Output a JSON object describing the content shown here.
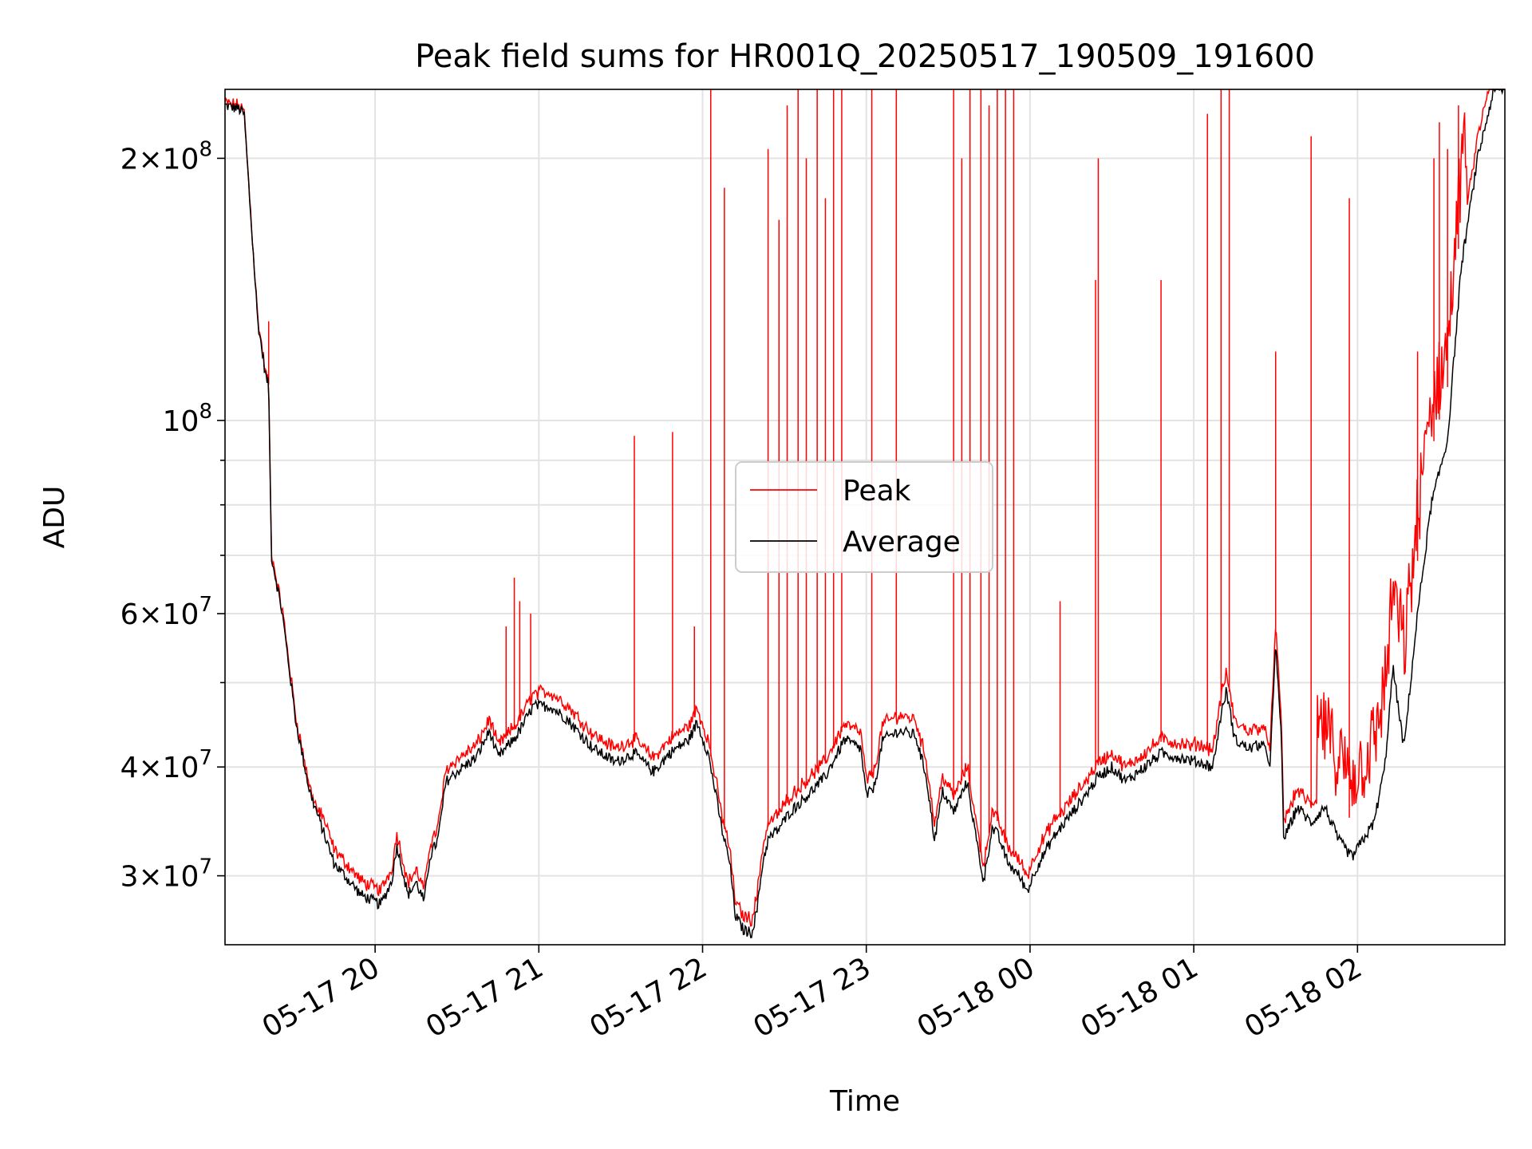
{
  "chart_data": {
    "type": "line",
    "title": "Peak field sums for HR001Q_20250517_190509_191600",
    "xlabel": "Time",
    "ylabel": "ADU",
    "x_axis_type": "time",
    "x_range": [
      "2025-05-17 19:05",
      "2025-05-18 02:54"
    ],
    "ylim": [
      25000000,
      240000000
    ],
    "yscale": "log",
    "grid": true,
    "legend_position": "center",
    "x_ticks": [
      {
        "value": "2025-05-17 20:00",
        "label": "05-17 20"
      },
      {
        "value": "2025-05-17 21:00",
        "label": "05-17 21"
      },
      {
        "value": "2025-05-17 22:00",
        "label": "05-17 22"
      },
      {
        "value": "2025-05-17 23:00",
        "label": "05-17 23"
      },
      {
        "value": "2025-05-18 00:00",
        "label": "05-18 00"
      },
      {
        "value": "2025-05-18 01:00",
        "label": "05-18 01"
      },
      {
        "value": "2025-05-18 02:00",
        "label": "05-18 02"
      }
    ],
    "y_ticks_major": [
      {
        "value": 30000000,
        "mantissa": "3",
        "exp": "7"
      },
      {
        "value": 40000000,
        "mantissa": "4",
        "exp": "7"
      },
      {
        "value": 60000000,
        "mantissa": "6",
        "exp": "7"
      },
      {
        "value": 100000000,
        "mantissa": "",
        "exp": "8"
      },
      {
        "value": 200000000,
        "mantissa": "2",
        "exp": "8"
      }
    ],
    "y_ticks_minor": [
      50000000,
      70000000,
      80000000,
      90000000
    ],
    "series": [
      {
        "name": "Peak",
        "color": "#ff0000"
      },
      {
        "name": "Average",
        "color": "#000000"
      }
    ],
    "average_profile": [
      [
        "2025-05-17 19:05",
        230000000
      ],
      [
        "2025-05-17 19:10",
        228000000
      ],
      [
        "2025-05-17 19:12",
        225000000
      ],
      [
        "2025-05-17 19:14",
        180000000
      ],
      [
        "2025-05-17 19:17",
        130000000
      ],
      [
        "2025-05-17 19:20",
        112000000
      ],
      [
        "2025-05-17 19:21",
        110000000
      ],
      [
        "2025-05-17 19:22",
        70000000
      ],
      [
        "2025-05-17 19:26",
        60000000
      ],
      [
        "2025-05-17 19:31",
        45000000
      ],
      [
        "2025-05-17 19:36",
        37500000
      ],
      [
        "2025-05-17 19:45",
        31000000
      ],
      [
        "2025-05-17 19:55",
        28500000
      ],
      [
        "2025-05-17 20:02",
        27800000
      ],
      [
        "2025-05-17 20:06",
        29500000
      ],
      [
        "2025-05-17 20:08",
        32500000
      ],
      [
        "2025-05-17 20:10",
        30500000
      ],
      [
        "2025-05-17 20:12",
        28500000
      ],
      [
        "2025-05-17 20:15",
        29500000
      ],
      [
        "2025-05-17 20:18",
        28000000
      ],
      [
        "2025-05-17 20:20",
        31500000
      ],
      [
        "2025-05-17 20:23",
        33000000
      ],
      [
        "2025-05-17 20:26",
        38500000
      ],
      [
        "2025-05-17 20:30",
        39500000
      ],
      [
        "2025-05-17 20:37",
        41000000
      ],
      [
        "2025-05-17 20:42",
        44000000
      ],
      [
        "2025-05-17 20:45",
        41000000
      ],
      [
        "2025-05-17 20:52",
        43500000
      ],
      [
        "2025-05-17 20:58",
        47000000
      ],
      [
        "2025-05-17 21:04",
        47000000
      ],
      [
        "2025-05-17 21:10",
        45500000
      ],
      [
        "2025-05-17 21:20",
        42000000
      ],
      [
        "2025-05-17 21:28",
        40500000
      ],
      [
        "2025-05-17 21:35",
        41500000
      ],
      [
        "2025-05-17 21:42",
        39500000
      ],
      [
        "2025-05-17 21:48",
        41500000
      ],
      [
        "2025-05-17 21:55",
        43000000
      ],
      [
        "2025-05-17 21:58",
        45000000
      ],
      [
        "2025-05-17 22:02",
        41500000
      ],
      [
        "2025-05-17 22:05",
        37000000
      ],
      [
        "2025-05-17 22:07",
        34000000
      ],
      [
        "2025-05-17 22:10",
        31000000
      ],
      [
        "2025-05-17 22:12",
        27000000
      ],
      [
        "2025-05-17 22:15",
        26000000
      ],
      [
        "2025-05-17 22:18",
        25800000
      ],
      [
        "2025-05-17 22:20",
        27500000
      ],
      [
        "2025-05-17 22:22",
        31000000
      ],
      [
        "2025-05-17 22:24",
        33000000
      ],
      [
        "2025-05-17 22:28",
        34000000
      ],
      [
        "2025-05-17 22:32",
        35500000
      ],
      [
        "2025-05-17 22:38",
        37000000
      ],
      [
        "2025-05-17 22:45",
        39000000
      ],
      [
        "2025-05-17 22:52",
        43000000
      ],
      [
        "2025-05-17 22:58",
        42000000
      ],
      [
        "2025-05-17 23:00",
        37000000
      ],
      [
        "2025-05-17 23:03",
        38000000
      ],
      [
        "2025-05-17 23:06",
        43000000
      ],
      [
        "2025-05-17 23:12",
        44000000
      ],
      [
        "2025-05-17 23:18",
        43500000
      ],
      [
        "2025-05-17 23:22",
        39000000
      ],
      [
        "2025-05-17 23:25",
        33000000
      ],
      [
        "2025-05-17 23:28",
        37500000
      ],
      [
        "2025-05-17 23:32",
        35500000
      ],
      [
        "2025-05-17 23:37",
        38500000
      ],
      [
        "2025-05-17 23:40",
        33500000
      ],
      [
        "2025-05-17 23:43",
        29500000
      ],
      [
        "2025-05-17 23:46",
        34000000
      ],
      [
        "2025-05-17 23:48",
        33500000
      ],
      [
        "2025-05-17 23:52",
        31000000
      ],
      [
        "2025-05-17 23:56",
        30000000
      ],
      [
        "2025-05-17 23:59",
        28800000
      ],
      [
        "2025-05-18 00:02",
        30500000
      ],
      [
        "2025-05-18 00:08",
        33000000
      ],
      [
        "2025-05-18 00:14",
        35000000
      ],
      [
        "2025-05-18 00:20",
        37000000
      ],
      [
        "2025-05-18 00:25",
        39000000
      ],
      [
        "2025-05-18 00:30",
        40000000
      ],
      [
        "2025-05-18 00:35",
        38500000
      ],
      [
        "2025-05-18 00:42",
        40000000
      ],
      [
        "2025-05-18 00:48",
        41500000
      ],
      [
        "2025-05-18 00:55",
        41000000
      ],
      [
        "2025-05-18 01:02",
        40500000
      ],
      [
        "2025-05-18 01:07",
        40000000
      ],
      [
        "2025-05-18 01:10",
        46000000
      ],
      [
        "2025-05-18 01:12",
        49000000
      ],
      [
        "2025-05-18 01:15",
        43000000
      ],
      [
        "2025-05-18 01:20",
        42000000
      ],
      [
        "2025-05-18 01:25",
        42500000
      ],
      [
        "2025-05-18 01:28",
        40500000
      ],
      [
        "2025-05-18 01:30",
        55000000
      ],
      [
        "2025-05-18 01:32",
        44000000
      ],
      [
        "2025-05-18 01:33",
        33000000
      ],
      [
        "2025-05-18 01:38",
        36000000
      ],
      [
        "2025-05-18 01:43",
        34500000
      ],
      [
        "2025-05-18 01:48",
        36000000
      ],
      [
        "2025-05-18 01:53",
        33000000
      ],
      [
        "2025-05-18 01:58",
        31500000
      ],
      [
        "2025-05-18 02:02",
        33000000
      ],
      [
        "2025-05-18 02:06",
        34500000
      ],
      [
        "2025-05-18 02:10",
        40000000
      ],
      [
        "2025-05-18 02:13",
        52000000
      ],
      [
        "2025-05-18 02:17",
        42000000
      ],
      [
        "2025-05-18 02:22",
        60000000
      ],
      [
        "2025-05-18 02:27",
        80000000
      ],
      [
        "2025-05-18 02:33",
        95000000
      ],
      [
        "2025-05-18 02:38",
        150000000
      ],
      [
        "2025-05-18 02:44",
        200000000
      ],
      [
        "2025-05-18 02:50",
        240000000
      ]
    ],
    "peak_offset_zones": [
      [
        "2025-05-17 19:26",
        1.005
      ],
      [
        "2025-05-17 19:40",
        1.03
      ],
      [
        "2025-05-17 20:05",
        1.025
      ],
      [
        "2025-05-17 21:00",
        1.03
      ],
      [
        "2025-05-17 22:20",
        1.035
      ],
      [
        "2025-05-17 23:30",
        1.035
      ],
      [
        "2025-05-18 00:10",
        1.03
      ],
      [
        "2025-05-18 01:00",
        1.04
      ],
      [
        "2025-05-18 01:45",
        1.1
      ],
      [
        "2025-05-18 02:15",
        1.15
      ],
      [
        "2025-05-18 02:40",
        1.05
      ]
    ],
    "peak_spikes": [
      [
        "2025-05-17 19:21",
        130000000
      ],
      [
        "2025-05-17 20:48",
        58000000
      ],
      [
        "2025-05-17 20:51",
        66000000
      ],
      [
        "2025-05-17 20:53",
        62000000
      ],
      [
        "2025-05-17 20:57",
        60000000
      ],
      [
        "2025-05-17 21:35",
        96000000
      ],
      [
        "2025-05-17 21:49",
        97000000
      ],
      [
        "2025-05-17 21:57",
        58000000
      ],
      [
        "2025-05-17 22:03",
        240000000
      ],
      [
        "2025-05-17 22:08",
        185000000
      ],
      [
        "2025-05-17 22:24",
        205000000
      ],
      [
        "2025-05-17 22:28",
        170000000
      ],
      [
        "2025-05-17 22:31",
        230000000
      ],
      [
        "2025-05-17 22:35",
        240000000
      ],
      [
        "2025-05-17 22:38",
        200000000
      ],
      [
        "2025-05-17 22:42",
        240000000
      ],
      [
        "2025-05-17 22:45",
        180000000
      ],
      [
        "2025-05-17 22:48",
        240000000
      ],
      [
        "2025-05-17 22:51",
        240000000
      ],
      [
        "2025-05-17 23:02",
        240000000
      ],
      [
        "2025-05-17 23:11",
        240000000
      ],
      [
        "2025-05-17 23:32",
        240000000
      ],
      [
        "2025-05-17 23:35",
        200000000
      ],
      [
        "2025-05-17 23:38",
        240000000
      ],
      [
        "2025-05-17 23:42",
        240000000
      ],
      [
        "2025-05-17 23:45",
        230000000
      ],
      [
        "2025-05-17 23:48",
        240000000
      ],
      [
        "2025-05-17 23:51",
        240000000
      ],
      [
        "2025-05-17 23:54",
        240000000
      ],
      [
        "2025-05-18 00:11",
        62000000
      ],
      [
        "2025-05-18 00:24",
        145000000
      ],
      [
        "2025-05-18 00:25",
        200000000
      ],
      [
        "2025-05-18 00:48",
        145000000
      ],
      [
        "2025-05-18 01:05",
        225000000
      ],
      [
        "2025-05-18 01:10",
        240000000
      ],
      [
        "2025-05-18 01:13",
        240000000
      ],
      [
        "2025-05-18 01:30",
        120000000
      ],
      [
        "2025-05-18 01:43",
        212000000
      ],
      [
        "2025-05-18 01:57",
        180000000
      ],
      [
        "2025-05-18 02:22",
        120000000
      ],
      [
        "2025-05-18 02:28",
        200000000
      ],
      [
        "2025-05-18 02:30",
        220000000
      ],
      [
        "2025-05-18 02:33",
        205000000
      ],
      [
        "2025-05-18 02:37",
        230000000
      ]
    ]
  }
}
